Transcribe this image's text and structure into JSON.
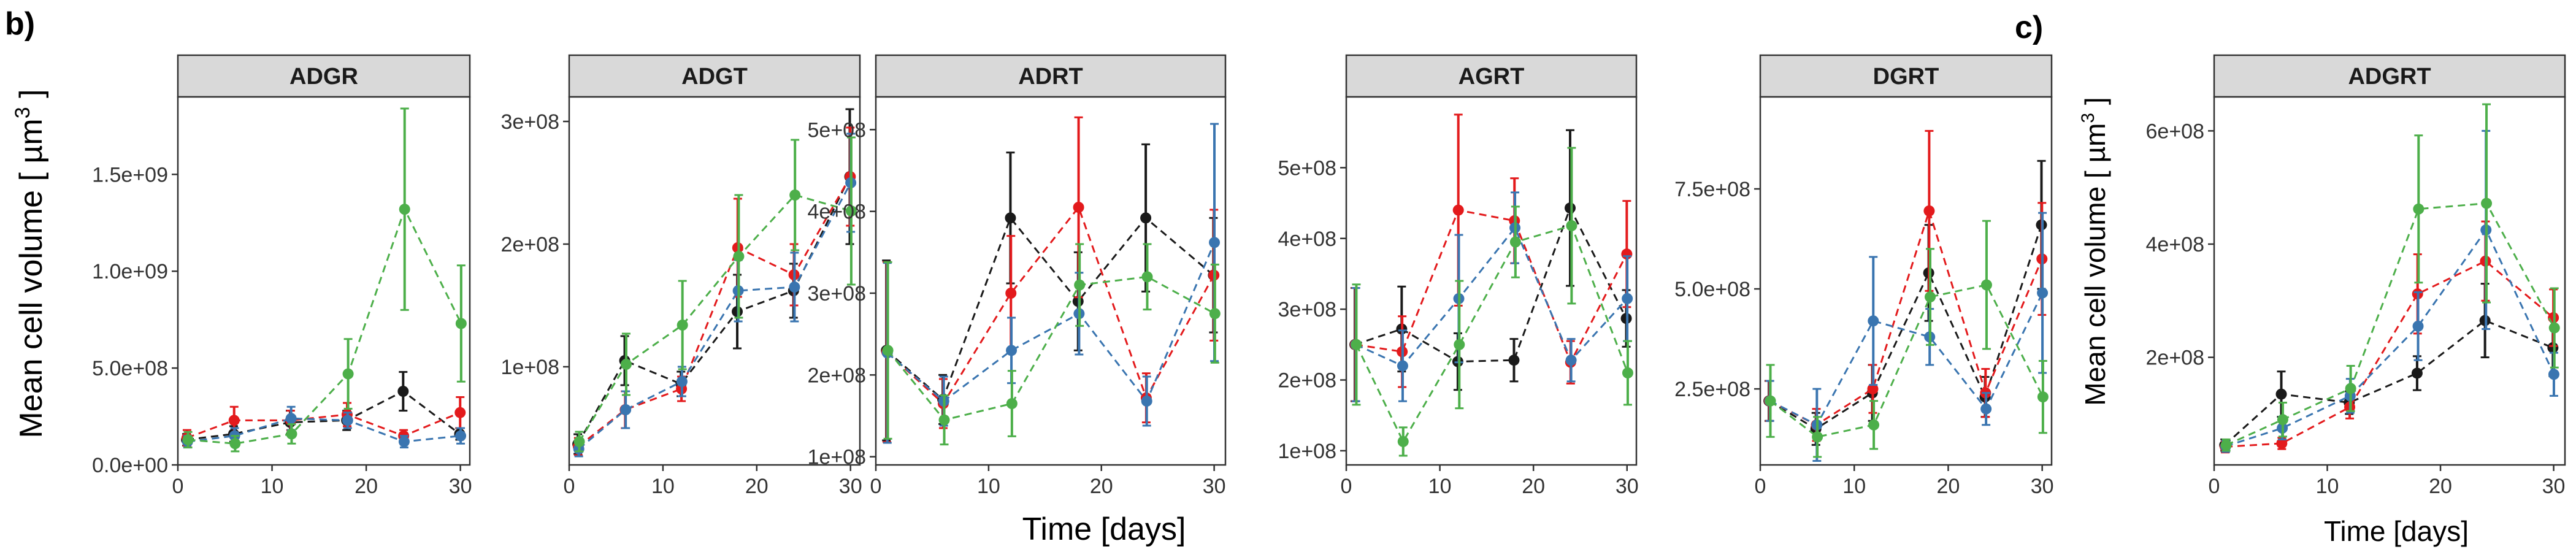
{
  "figure": {
    "panel_b_tag": "b)",
    "panel_c_tag": "c)",
    "b_xlabel": "Time [days]",
    "b_ylabel": "Mean cell volume [ µm",
    "b_ylabel_sup": "3",
    "b_ylabel_end": " ]",
    "c_xlabel": "Time [days]",
    "c_ylabel": "Mean cell volume [ µm",
    "c_ylabel_sup": "3",
    "c_ylabel_end": " ]",
    "colors": {
      "black": "#1a1a1a",
      "red": "#e31a1c",
      "blue": "#3a75b0",
      "green": "#4daf4a",
      "strip": "#d9d9d9"
    }
  },
  "chart_data": [
    {
      "type": "line",
      "title": "ADGR",
      "x": [
        1,
        6,
        12,
        18,
        24,
        30
      ],
      "xticks": [
        0,
        10,
        20,
        30
      ],
      "xlim": [
        0,
        31
      ],
      "ylim": [
        0,
        1900000000.0
      ],
      "yticks": [
        0,
        500000000.0,
        1000000000.0,
        1500000000.0
      ],
      "ytick_labels": [
        "0.0e+00",
        "5.0e+08",
        "1.0e+09",
        "1.5e+09"
      ],
      "grid": false,
      "series": [
        {
          "color": "black",
          "values": [
            130000000.0,
            160000000.0,
            220000000.0,
            230000000.0,
            380000000.0,
            160000000.0
          ],
          "err": [
            30000000.0,
            40000000.0,
            60000000.0,
            50000000.0,
            100000000.0,
            30000000.0
          ]
        },
        {
          "color": "red",
          "values": [
            140000000.0,
            230000000.0,
            230000000.0,
            260000000.0,
            150000000.0,
            270000000.0
          ],
          "err": [
            40000000.0,
            70000000.0,
            50000000.0,
            60000000.0,
            30000000.0,
            80000000.0
          ]
        },
        {
          "color": "blue",
          "values": [
            120000000.0,
            150000000.0,
            240000000.0,
            230000000.0,
            120000000.0,
            150000000.0
          ],
          "err": [
            30000000.0,
            40000000.0,
            60000000.0,
            40000000.0,
            30000000.0,
            40000000.0
          ]
        },
        {
          "color": "green",
          "values": [
            130000000.0,
            110000000.0,
            160000000.0,
            470000000.0,
            1320000000.0,
            730000000.0
          ],
          "err": [
            40000000.0,
            40000000.0,
            50000000.0,
            180000000.0,
            520000000.0,
            300000000.0
          ]
        }
      ]
    },
    {
      "type": "line",
      "title": "ADGT",
      "x": [
        1,
        6,
        12,
        18,
        24,
        30
      ],
      "xticks": [
        0,
        10,
        20,
        30
      ],
      "xlim": [
        0,
        31
      ],
      "ylim": [
        20000000.0,
        320000000.0
      ],
      "yticks": [
        100000000.0,
        200000000.0,
        300000000.0
      ],
      "ytick_labels": [
        "1e+08",
        "2e+08",
        "3e+08"
      ],
      "grid": false,
      "series": [
        {
          "color": "black",
          "values": [
            37000000.0,
            105000000.0,
            86000000.0,
            145000000.0,
            162000000.0,
            255000000.0
          ],
          "err": [
            8000000.0,
            20000000.0,
            10000000.0,
            30000000.0,
            22000000.0,
            55000000.0
          ]
        },
        {
          "color": "red",
          "values": [
            35000000.0,
            65000000.0,
            82000000.0,
            197000000.0,
            175000000.0,
            255000000.0
          ],
          "err": [
            7000000.0,
            15000000.0,
            10000000.0,
            40000000.0,
            25000000.0,
            40000000.0
          ]
        },
        {
          "color": "blue",
          "values": [
            33000000.0,
            65000000.0,
            88000000.0,
            162000000.0,
            165000000.0,
            250000000.0
          ],
          "err": [
            6000000.0,
            15000000.0,
            12000000.0,
            25000000.0,
            28000000.0,
            40000000.0
          ]
        },
        {
          "color": "green",
          "values": [
            39000000.0,
            102000000.0,
            134000000.0,
            190000000.0,
            240000000.0,
            227000000.0
          ],
          "err": [
            8000000.0,
            25000000.0,
            36000000.0,
            50000000.0,
            45000000.0,
            60000000.0
          ]
        }
      ]
    },
    {
      "type": "line",
      "title": "ADRT",
      "x": [
        1,
        6,
        12,
        18,
        24,
        30
      ],
      "xticks": [
        0,
        10,
        20,
        30
      ],
      "xlim": [
        0,
        31
      ],
      "ylim": [
        90000000.0,
        540000000.0
      ],
      "yticks": [
        100000000.0,
        200000000.0,
        300000000.0,
        400000000.0,
        500000000.0
      ],
      "ytick_labels": [
        "1e+08",
        "2e+08",
        "3e+08",
        "4e+08",
        "5e+08"
      ],
      "grid": false,
      "series": [
        {
          "color": "black",
          "values": [
            230000000.0,
            170000000.0,
            392000000.0,
            290000000.0,
            392000000.0,
            322000000.0
          ],
          "err": [
            110000000.0,
            30000000.0,
            80000000.0,
            60000000.0,
            90000000.0,
            70000000.0
          ]
        },
        {
          "color": "red",
          "values": [
            228000000.0,
            165000000.0,
            300000000.0,
            405000000.0,
            172000000.0,
            322000000.0
          ],
          "err": [
            110000000.0,
            30000000.0,
            70000000.0,
            110000000.0,
            30000000.0,
            80000000.0
          ]
        },
        {
          "color": "blue",
          "values": [
            227000000.0,
            168000000.0,
            230000000.0,
            275000000.0,
            168000000.0,
            362000000.0
          ],
          "err": [
            110000000.0,
            30000000.0,
            40000000.0,
            50000000.0,
            30000000.0,
            145000000.0
          ]
        },
        {
          "color": "green",
          "values": [
            230000000.0,
            145000000.0,
            165000000.0,
            310000000.0,
            320000000.0,
            275000000.0
          ],
          "err": [
            108000000.0,
            30000000.0,
            40000000.0,
            50000000.0,
            40000000.0,
            60000000.0
          ]
        }
      ]
    },
    {
      "type": "line",
      "title": "AGRT",
      "x": [
        1,
        6,
        12,
        18,
        24,
        30
      ],
      "xticks": [
        0,
        10,
        20,
        30
      ],
      "xlim": [
        0,
        31
      ],
      "ylim": [
        80000000.0,
        600000000.0
      ],
      "yticks": [
        100000000.0,
        200000000.0,
        300000000.0,
        400000000.0,
        500000000.0
      ],
      "ytick_labels": [
        "1e+08",
        "2e+08",
        "3e+08",
        "4e+08",
        "5e+08"
      ],
      "grid": false,
      "series": [
        {
          "color": "black",
          "values": [
            250000000.0,
            272000000.0,
            226000000.0,
            228000000.0,
            443000000.0,
            287000000.0
          ],
          "err": [
            80000000.0,
            60000000.0,
            40000000.0,
            30000000.0,
            110000000.0,
            40000000.0
          ]
        },
        {
          "color": "red",
          "values": [
            250000000.0,
            240000000.0,
            440000000.0,
            425000000.0,
            225000000.0,
            378000000.0
          ],
          "err": [
            80000000.0,
            50000000.0,
            135000000.0,
            60000000.0,
            30000000.0,
            75000000.0
          ]
        },
        {
          "color": "blue",
          "values": [
            250000000.0,
            220000000.0,
            315000000.0,
            415000000.0,
            228000000.0,
            315000000.0
          ],
          "err": [
            80000000.0,
            50000000.0,
            90000000.0,
            50000000.0,
            30000000.0,
            60000000.0
          ]
        },
        {
          "color": "green",
          "values": [
            250000000.0,
            113000000.0,
            250000000.0,
            395000000.0,
            418000000.0,
            210000000.0
          ],
          "err": [
            85000000.0,
            20000000.0,
            90000000.0,
            50000000.0,
            110000000.0,
            45000000.0
          ]
        }
      ]
    },
    {
      "type": "line",
      "title": "DGRT",
      "x": [
        1,
        6,
        12,
        18,
        24,
        30
      ],
      "xticks": [
        0,
        10,
        20,
        30
      ],
      "xlim": [
        0,
        31
      ],
      "ylim": [
        60000000.0,
        980000000.0
      ],
      "yticks": [
        250000000.0,
        500000000.0,
        750000000.0
      ],
      "ytick_labels": [
        "2.5e+08",
        "5.0e+08",
        "7.5e+08"
      ],
      "grid": false,
      "series": [
        {
          "color": "black",
          "values": [
            220000000.0,
            150000000.0,
            240000000.0,
            540000000.0,
            230000000.0,
            660000000.0
          ],
          "err": [
            50000000.0,
            40000000.0,
            70000000.0,
            120000000.0,
            50000000.0,
            160000000.0
          ]
        },
        {
          "color": "red",
          "values": [
            220000000.0,
            160000000.0,
            250000000.0,
            695000000.0,
            240000000.0,
            575000000.0
          ],
          "err": [
            50000000.0,
            40000000.0,
            60000000.0,
            200000000.0,
            60000000.0,
            140000000.0
          ]
        },
        {
          "color": "blue",
          "values": [
            220000000.0,
            160000000.0,
            420000000.0,
            380000000.0,
            200000000.0,
            490000000.0
          ],
          "err": [
            50000000.0,
            90000000.0,
            160000000.0,
            70000000.0,
            40000000.0,
            200000000.0
          ]
        },
        {
          "color": "green",
          "values": [
            220000000.0,
            130000000.0,
            160000000.0,
            480000000.0,
            510000000.0,
            230000000.0
          ],
          "err": [
            90000000.0,
            50000000.0,
            60000000.0,
            120000000.0,
            160000000.0,
            90000000.0
          ]
        }
      ]
    },
    {
      "type": "line",
      "title": "ADGRT",
      "x": [
        1,
        6,
        12,
        18,
        24,
        30
      ],
      "xticks": [
        0,
        10,
        20,
        30
      ],
      "xlim": [
        0,
        31
      ],
      "ylim": [
        10000000.0,
        660000000.0
      ],
      "yticks": [
        200000000.0,
        400000000.0,
        600000000.0
      ],
      "ytick_labels": [
        "2e+08",
        "4e+08",
        "6e+08"
      ],
      "grid": false,
      "series": [
        {
          "color": "black",
          "values": [
            45000000.0,
            135000000.0,
            120000000.0,
            172000000.0,
            265000000.0,
            217000000.0
          ],
          "err": [
            10000000.0,
            40000000.0,
            20000000.0,
            30000000.0,
            65000000.0,
            50000000.0
          ]
        },
        {
          "color": "red",
          "values": [
            42000000.0,
            48000000.0,
            112000000.0,
            312000000.0,
            370000000.0,
            270000000.0
          ],
          "err": [
            10000000.0,
            10000000.0,
            20000000.0,
            70000000.0,
            70000000.0,
            50000000.0
          ]
        },
        {
          "color": "blue",
          "values": [
            43000000.0,
            75000000.0,
            132000000.0,
            255000000.0,
            425000000.0,
            170000000.0
          ],
          "err": [
            10000000.0,
            20000000.0,
            30000000.0,
            60000000.0,
            175000000.0,
            38000000.0
          ]
        },
        {
          "color": "green",
          "values": [
            45000000.0,
            90000000.0,
            145000000.0,
            462000000.0,
            472000000.0,
            252000000.0
          ],
          "err": [
            10000000.0,
            30000000.0,
            40000000.0,
            130000000.0,
            175000000.0,
            70000000.0
          ]
        }
      ]
    }
  ]
}
